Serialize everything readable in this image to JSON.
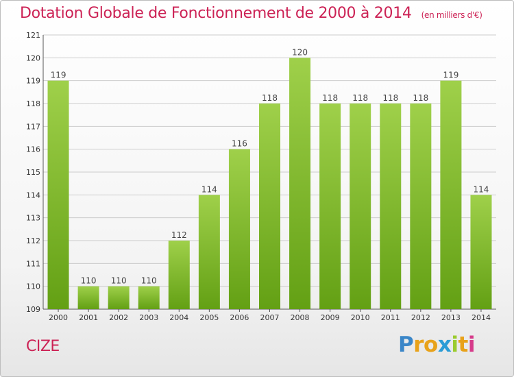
{
  "title": "Dotation Globale de Fonctionnement de 2000 à 2014",
  "unit_note": "(en milliers d'€)",
  "commune": "CIZE",
  "brand": "Proxiti",
  "colors": {
    "title": "#cc2255",
    "bar_top": "#9fd04a",
    "bar_bottom": "#63a014",
    "grid": "#cccccc"
  },
  "chart_data": {
    "type": "bar",
    "title": "Dotation Globale de Fonctionnement de 2000 à 2014",
    "subtitle": "(en milliers d'€)",
    "categories": [
      "2000",
      "2001",
      "2002",
      "2003",
      "2004",
      "2005",
      "2006",
      "2007",
      "2008",
      "2009",
      "2010",
      "2011",
      "2012",
      "2013",
      "2014"
    ],
    "values": [
      119,
      110,
      110,
      110,
      112,
      114,
      116,
      118,
      120,
      118,
      118,
      118,
      118,
      119,
      114
    ],
    "ylim": [
      109,
      121
    ],
    "yticks": [
      109,
      110,
      111,
      112,
      113,
      114,
      115,
      116,
      117,
      118,
      119,
      120,
      121
    ],
    "grid": true,
    "xlabel": "",
    "ylabel": ""
  }
}
